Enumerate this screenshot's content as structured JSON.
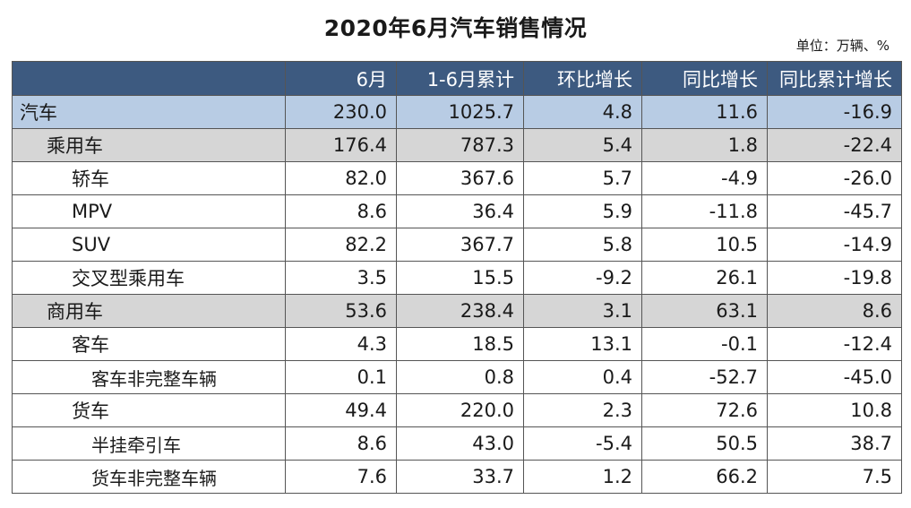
{
  "page": {
    "title": "2020年6月汽车销售情况",
    "unit": "单位：万辆、%"
  },
  "chart_data": {
    "type": "table",
    "title": "2020年6月汽车销售情况",
    "unit": "单位：万辆、%",
    "columns": [
      "",
      "6月",
      "1-6月累计",
      "环比增长",
      "同比增长",
      "同比累计增长"
    ],
    "rows": [
      {
        "level": 0,
        "label": "汽车",
        "values": [
          "230.0",
          "1025.7",
          "4.8",
          "11.6",
          "-16.9"
        ]
      },
      {
        "level": 1,
        "label": "乘用车",
        "values": [
          "176.4",
          "787.3",
          "5.4",
          "1.8",
          "-22.4"
        ]
      },
      {
        "level": 2,
        "label": "轿车",
        "values": [
          "82.0",
          "367.6",
          "5.7",
          "-4.9",
          "-26.0"
        ]
      },
      {
        "level": 2,
        "label": "MPV",
        "values": [
          "8.6",
          "36.4",
          "5.9",
          "-11.8",
          "-45.7"
        ]
      },
      {
        "level": 2,
        "label": "SUV",
        "values": [
          "82.2",
          "367.7",
          "5.8",
          "10.5",
          "-14.9"
        ]
      },
      {
        "level": 2,
        "label": "交叉型乘用车",
        "values": [
          "3.5",
          "15.5",
          "-9.2",
          "26.1",
          "-19.8"
        ]
      },
      {
        "level": 1,
        "label": "商用车",
        "values": [
          "53.6",
          "238.4",
          "3.1",
          "63.1",
          "8.6"
        ]
      },
      {
        "level": 2,
        "label": "客车",
        "values": [
          "4.3",
          "18.5",
          "13.1",
          "-0.1",
          "-12.4"
        ]
      },
      {
        "level": 3,
        "label": "客车非完整车辆",
        "values": [
          "0.1",
          "0.8",
          "0.4",
          "-52.7",
          "-45.0"
        ]
      },
      {
        "level": 2,
        "label": "货车",
        "values": [
          "49.4",
          "220.0",
          "2.3",
          "72.6",
          "10.8"
        ]
      },
      {
        "level": 3,
        "label": "半挂牵引车",
        "values": [
          "8.6",
          "43.0",
          "-5.4",
          "50.5",
          "38.7"
        ]
      },
      {
        "level": 3,
        "label": "货车非完整车辆",
        "values": [
          "7.6",
          "33.7",
          "1.2",
          "66.2",
          "7.5"
        ]
      }
    ],
    "colors": {
      "header_bg": "#3d5a80",
      "header_text": "#ffffff",
      "total_row_bg": "#b8cce4",
      "category_row_bg": "#d6d6d6",
      "detail_row_bg": "#ffffff"
    }
  }
}
